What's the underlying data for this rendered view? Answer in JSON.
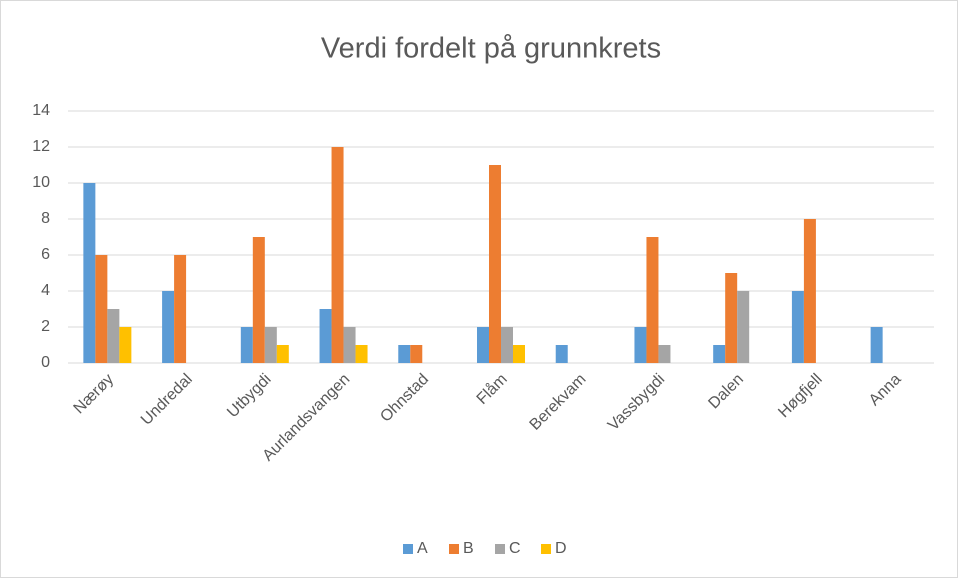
{
  "chart_data": {
    "type": "bar",
    "title": "Verdi fordelt på grunnkrets",
    "categories": [
      "Nærøy",
      "Undredal",
      "Utbygdi",
      "Aurlandsvangen",
      "Ohnstad",
      "Flåm",
      "Berekvam",
      "Vassbygdi",
      "Dalen",
      "Høgfjell",
      "Anna"
    ],
    "series": [
      {
        "name": "A",
        "color": "#5b9bd5",
        "values": [
          10,
          4,
          2,
          3,
          1,
          2,
          1,
          2,
          1,
          4,
          2
        ]
      },
      {
        "name": "B",
        "color": "#ed7d31",
        "values": [
          6,
          6,
          7,
          12,
          1,
          11,
          0,
          7,
          5,
          8,
          0
        ]
      },
      {
        "name": "C",
        "color": "#a5a5a5",
        "values": [
          3,
          0,
          2,
          2,
          0,
          2,
          0,
          1,
          4,
          0,
          0
        ]
      },
      {
        "name": "D",
        "color": "#ffc000",
        "values": [
          2,
          0,
          1,
          1,
          0,
          1,
          0,
          0,
          0,
          0,
          0
        ]
      }
    ],
    "ylim": [
      0,
      14
    ],
    "yticks": [
      0,
      2,
      4,
      6,
      8,
      10,
      12,
      14
    ],
    "grid": true,
    "legend": "bottom"
  }
}
